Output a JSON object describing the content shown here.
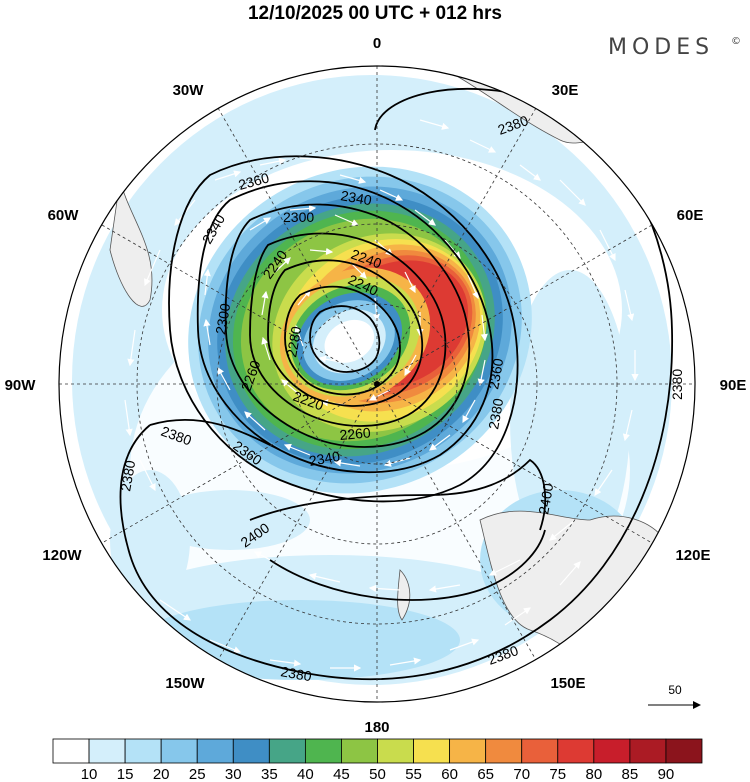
{
  "header": {
    "title": "12/10/2025  00 UTC  + 012 hrs",
    "brand": "MODES",
    "brand_mark": "©"
  },
  "map": {
    "projection": "south polar stereographic",
    "longitude_labels": {
      "top": "0",
      "upper_left": "30W",
      "upper_right": "30E",
      "left_upper": "60W",
      "right_upper": "60E",
      "left": "90W",
      "right": "90E",
      "left_lower": "120W",
      "right_lower": "120E",
      "lower_left": "150W",
      "lower_right": "150E",
      "bottom": "180"
    },
    "contour_labels": [
      "2380",
      "2360",
      "2340",
      "2300",
      "2240",
      "2240",
      "2340",
      "2240",
      "2300",
      "2280",
      "2260",
      "2220",
      "2260",
      "2360",
      "2340",
      "2380",
      "2380",
      "2360",
      "2380",
      "2400",
      "2400",
      "2380",
      "2380",
      "2380"
    ],
    "reference_vector": "50"
  },
  "colorbar": {
    "ticks": [
      "10",
      "15",
      "20",
      "25",
      "30",
      "35",
      "40",
      "45",
      "50",
      "55",
      "60",
      "65",
      "70",
      "75",
      "80",
      "85",
      "90"
    ],
    "colors": [
      "#ffffff",
      "#d4effb",
      "#b4e2f7",
      "#86c7eb",
      "#5ea9da",
      "#3f8ec5",
      "#46a587",
      "#4fb54f",
      "#8dc544",
      "#c9dc4d",
      "#f6e04f",
      "#f6b447",
      "#f08a3e",
      "#e9603a",
      "#dd3a33",
      "#c81e2b",
      "#ab1b24",
      "#8b141c"
    ]
  }
}
